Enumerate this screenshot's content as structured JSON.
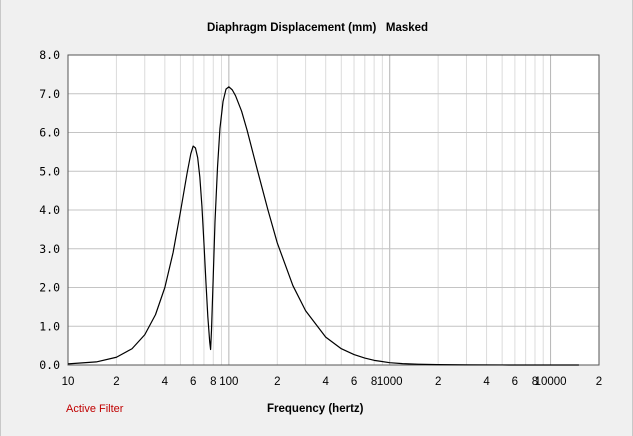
{
  "chart_data": {
    "type": "line",
    "title": "Diaphragm Displacement (mm)   Masked",
    "xlabel": "Frequency (hertz)",
    "ylabel": "",
    "x_scale": "log",
    "xlim": [
      10,
      20000
    ],
    "ylim": [
      0,
      8
    ],
    "grid": true,
    "y_ticks": [
      "0.0",
      "1.0",
      "2.0",
      "3.0",
      "4.0",
      "5.0",
      "6.0",
      "7.0",
      "8.0"
    ],
    "x_ticks": [
      {
        "value": 10,
        "label": "10"
      },
      {
        "value": 20,
        "label": "2"
      },
      {
        "value": 40,
        "label": "4"
      },
      {
        "value": 60,
        "label": "6"
      },
      {
        "value": 80,
        "label": "8"
      },
      {
        "value": 100,
        "label": "100"
      },
      {
        "value": 200,
        "label": "2"
      },
      {
        "value": 400,
        "label": "4"
      },
      {
        "value": 600,
        "label": "6"
      },
      {
        "value": 800,
        "label": "8"
      },
      {
        "value": 1000,
        "label": "1000"
      },
      {
        "value": 2000,
        "label": "2"
      },
      {
        "value": 4000,
        "label": "4"
      },
      {
        "value": 6000,
        "label": "6"
      },
      {
        "value": 8000,
        "label": "8"
      },
      {
        "value": 10000,
        "label": "10000"
      },
      {
        "value": 20000,
        "label": "2"
      }
    ],
    "series": [
      {
        "color": "#000000",
        "x": [
          10,
          15,
          20,
          25,
          30,
          35,
          40,
          45,
          50,
          55,
          58,
          60,
          62,
          64,
          66,
          68,
          70,
          72,
          74,
          76,
          77,
          78,
          80,
          82,
          85,
          88,
          92,
          96,
          100,
          105,
          110,
          120,
          130,
          150,
          175,
          200,
          250,
          300,
          400,
          500,
          600,
          700,
          800,
          1000,
          1200,
          1500,
          2000,
          3000,
          5000,
          10000,
          15000
        ],
        "y": [
          0.03,
          0.08,
          0.2,
          0.42,
          0.78,
          1.3,
          2.0,
          2.9,
          3.95,
          4.95,
          5.45,
          5.65,
          5.6,
          5.35,
          4.85,
          4.1,
          3.15,
          2.15,
          1.25,
          0.6,
          0.4,
          0.9,
          2.3,
          3.7,
          5.1,
          6.1,
          6.8,
          7.12,
          7.18,
          7.1,
          6.95,
          6.55,
          6.05,
          5.05,
          4.0,
          3.15,
          2.05,
          1.4,
          0.72,
          0.42,
          0.27,
          0.18,
          0.12,
          0.06,
          0.035,
          0.02,
          0.01,
          0.004,
          0.001,
          0.0,
          0.0
        ]
      }
    ]
  },
  "footer": {
    "filter_note": "Active Filter"
  }
}
